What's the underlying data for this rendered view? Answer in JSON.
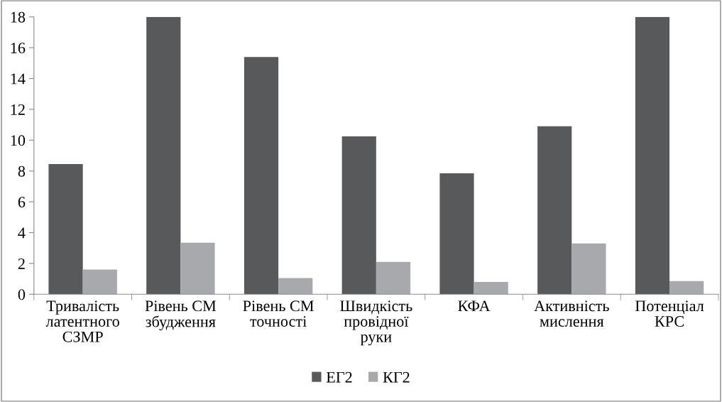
{
  "chart_data": {
    "type": "bar",
    "categories": [
      "Тривалість\nлатентного\nСЗМР",
      "Рівень СМ\nзбудження",
      "Рівень СМ\nточності",
      "Швидкість\nпровідної\nруки",
      "КФА",
      "Активність\nмислення",
      "Потенціал\nКРС"
    ],
    "series": [
      {
        "name": "ЕГ2",
        "color": "#58595b",
        "values": [
          8.45,
          18,
          15.4,
          10.25,
          7.85,
          10.9,
          18
        ]
      },
      {
        "name": "КГ2",
        "color": "#a7a9ac",
        "values": [
          1.6,
          3.35,
          1.05,
          2.1,
          0.8,
          3.3,
          0.85
        ]
      }
    ],
    "ylim": [
      0,
      18
    ],
    "yticks": [
      0,
      2,
      4,
      6,
      8,
      10,
      12,
      14,
      16,
      18
    ],
    "grid": false,
    "legend": "bottom"
  }
}
